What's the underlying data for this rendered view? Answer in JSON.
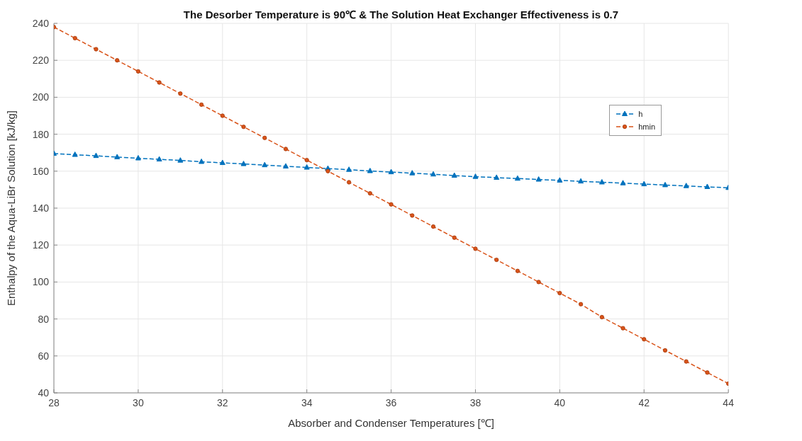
{
  "chart_data": {
    "type": "line",
    "title": "The Desorber Temperature is 90℃ & The Solution Heat Exchanger Effectiveness is 0.7",
    "xlabel": "Absorber and Condenser Temperatures [℃]",
    "ylabel": "Enthalpy of the Aqua-LiBr Solution  [kJ/kg]",
    "x": [
      28,
      28.5,
      29,
      29.5,
      30,
      30.5,
      31,
      31.5,
      32,
      32.5,
      33,
      33.5,
      34,
      34.5,
      35,
      35.5,
      36,
      36.5,
      37,
      37.5,
      38,
      38.5,
      39,
      39.5,
      40,
      40.5,
      41,
      41.5,
      42,
      42.5,
      43,
      43.5,
      44
    ],
    "series": [
      {
        "name": "h",
        "color": "#0072bd",
        "marker": "triangle",
        "values": [
          169.5,
          168.9,
          168.3,
          167.6,
          167,
          166.4,
          165.8,
          165.1,
          164.5,
          163.9,
          163.3,
          162.6,
          162,
          161.4,
          160.8,
          160.1,
          159.5,
          158.9,
          158.3,
          157.6,
          157,
          156.5,
          156,
          155.5,
          155,
          154.5,
          154,
          153.5,
          153,
          152.5,
          152,
          151.5,
          151
        ]
      },
      {
        "name": "hmin",
        "color": "#d95319",
        "marker": "circle",
        "values": [
          238,
          232,
          226,
          220,
          214,
          208,
          202,
          196,
          190,
          184,
          178,
          172,
          166,
          160,
          154,
          148,
          142,
          136,
          130,
          124,
          118,
          112,
          106,
          100,
          94,
          88,
          81,
          75,
          69,
          63,
          57,
          51,
          45
        ]
      }
    ],
    "xlim": [
      28,
      44
    ],
    "xticks": [
      28,
      30,
      32,
      34,
      36,
      38,
      40,
      42,
      44
    ],
    "ylim": [
      40,
      240
    ],
    "yticks": [
      40,
      60,
      80,
      100,
      120,
      140,
      160,
      180,
      200,
      220,
      240
    ],
    "grid": true,
    "legend": "top right",
    "line_style": "dashed"
  }
}
